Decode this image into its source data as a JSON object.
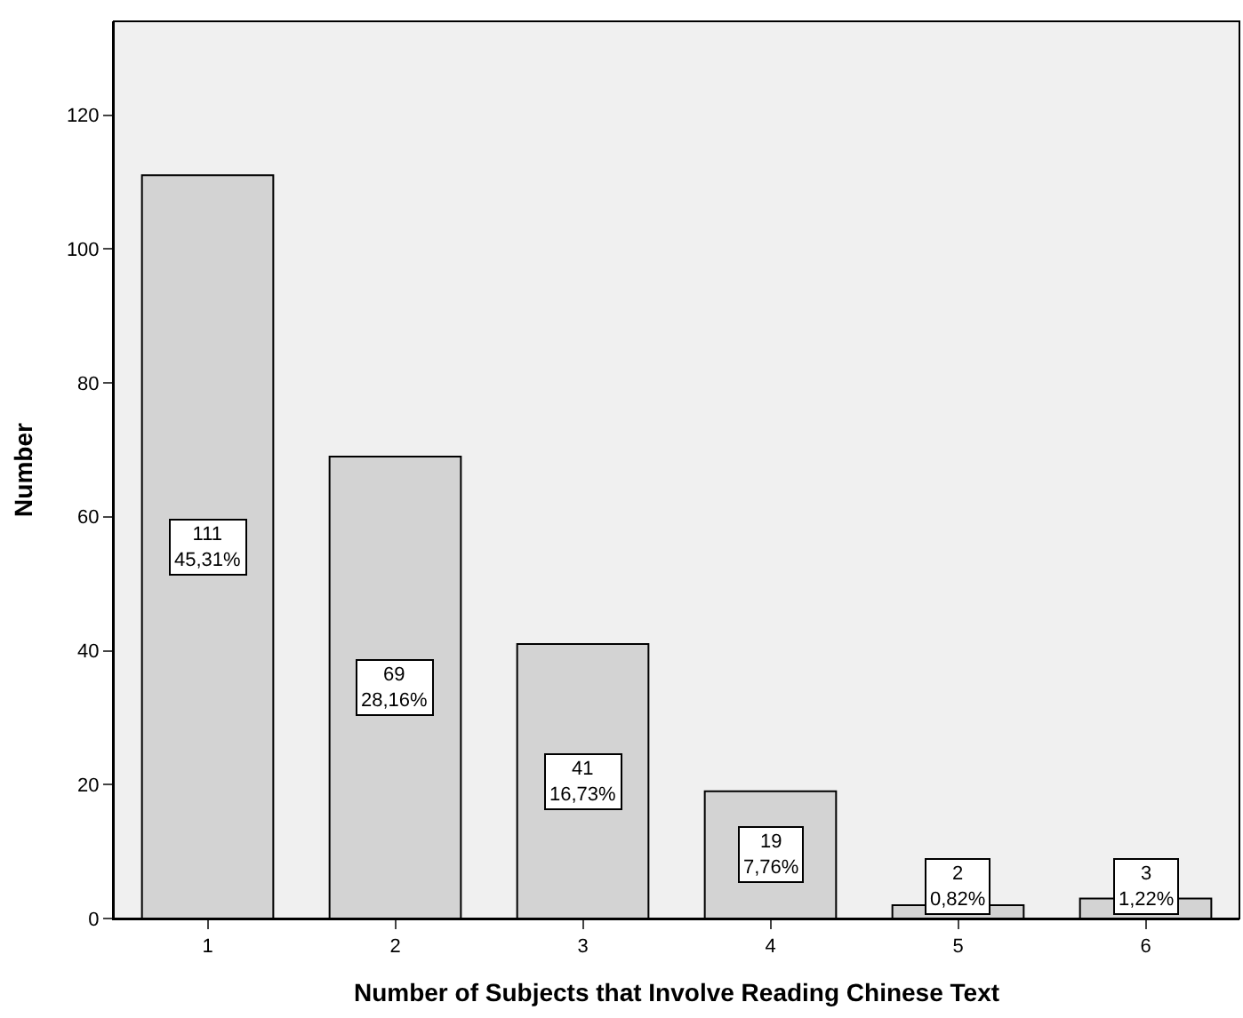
{
  "chart_data": {
    "type": "bar",
    "xlabel": "Number of Subjects that Involve Reading Chinese Text",
    "ylabel": "Number",
    "categories": [
      "1",
      "2",
      "3",
      "4",
      "5",
      "6"
    ],
    "values": [
      111,
      69,
      41,
      19,
      2,
      3
    ],
    "value_labels": [
      "111\n45,31%",
      "69\n28,16%",
      "41\n16,73%",
      "19\n7,76%",
      "2\n0,82%",
      "3\n1,22%"
    ],
    "color": "#d3d3d3",
    "ylim": [
      0,
      134
    ],
    "yticks": [
      0,
      20,
      40,
      60,
      80,
      100,
      120
    ],
    "grid": false
  }
}
